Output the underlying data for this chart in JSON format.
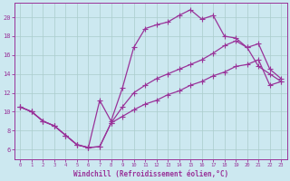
{
  "xlabel": "Windchill (Refroidissement éolien,°C)",
  "bg_color": "#cce8f0",
  "grid_color": "#aacccc",
  "line_color": "#993399",
  "xlim": [
    -0.5,
    23.5
  ],
  "ylim": [
    5.0,
    21.5
  ],
  "yticks": [
    6,
    8,
    10,
    12,
    14,
    16,
    18,
    20
  ],
  "xticks": [
    0,
    1,
    2,
    3,
    4,
    5,
    6,
    7,
    8,
    9,
    10,
    11,
    12,
    13,
    14,
    15,
    16,
    17,
    18,
    19,
    20,
    21,
    22,
    23
  ],
  "line_bottom_x": [
    0,
    1,
    2,
    3,
    4,
    5,
    6,
    7,
    8,
    9,
    10,
    11,
    12,
    13,
    14,
    15,
    16,
    17,
    18,
    19,
    20,
    21,
    22,
    23
  ],
  "line_bottom_y": [
    10.5,
    10.0,
    9.0,
    8.5,
    7.5,
    6.5,
    6.2,
    6.3,
    8.8,
    9.5,
    10.2,
    10.8,
    11.2,
    11.8,
    12.2,
    12.8,
    13.2,
    13.8,
    14.2,
    14.8,
    15.0,
    15.5,
    12.8,
    13.2
  ],
  "line_top_x": [
    0,
    1,
    2,
    3,
    4,
    5,
    6,
    7,
    8,
    9,
    10,
    11,
    12,
    13,
    14,
    15,
    16,
    17,
    18,
    19,
    20,
    21,
    22,
    23
  ],
  "line_top_y": [
    10.5,
    10.0,
    9.0,
    8.5,
    7.5,
    6.5,
    6.2,
    11.2,
    9.0,
    12.5,
    16.8,
    18.8,
    19.2,
    19.5,
    20.2,
    20.8,
    19.8,
    20.2,
    18.0,
    17.8,
    16.8,
    14.8,
    14.0,
    13.2
  ],
  "line_mid_x": [
    0,
    1,
    2,
    3,
    4,
    5,
    6,
    7,
    8,
    9,
    10,
    11,
    12,
    13,
    14,
    15,
    16,
    17,
    18,
    19,
    20,
    21,
    22,
    23
  ],
  "line_mid_y": [
    10.5,
    10.0,
    9.0,
    8.5,
    7.5,
    6.5,
    6.2,
    6.3,
    8.8,
    10.5,
    12.0,
    12.8,
    13.5,
    14.0,
    14.5,
    15.0,
    15.5,
    16.2,
    17.0,
    17.5,
    16.8,
    17.2,
    14.5,
    13.5
  ]
}
